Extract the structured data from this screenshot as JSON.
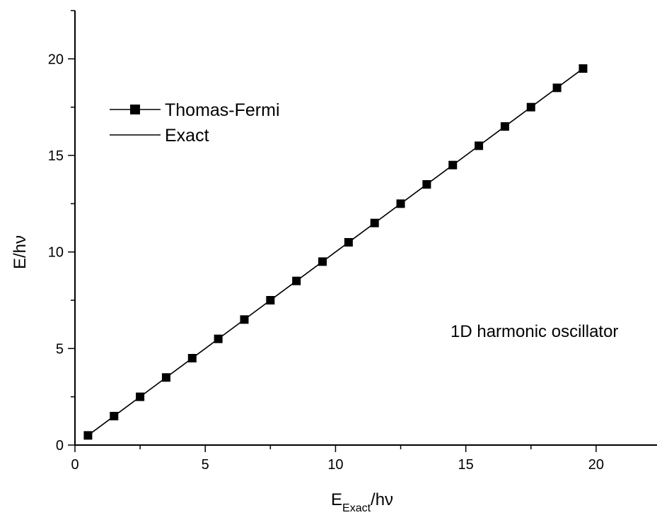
{
  "chart_data": {
    "type": "line",
    "xlabel_main": "E",
    "xlabel_sub": "Exact",
    "xlabel_tail": "/hν",
    "ylabel": "E/hν",
    "xlim": [
      0,
      22.5
    ],
    "ylim": [
      0,
      22.5
    ],
    "x_ticks": [
      0,
      5,
      10,
      15,
      20
    ],
    "y_ticks": [
      0,
      5,
      10,
      15,
      20
    ],
    "grid": false,
    "legend_position": "upper-left",
    "annotation": "1D harmonic oscillator",
    "series": [
      {
        "name": "Thomas-Fermi",
        "style": "line-with-square-markers",
        "color": "#000000",
        "x": [
          0.5,
          1.5,
          2.5,
          3.5,
          4.5,
          5.5,
          6.5,
          7.5,
          8.5,
          9.5,
          10.5,
          11.5,
          12.5,
          13.5,
          14.5,
          15.5,
          16.5,
          17.5,
          18.5,
          19.5
        ],
        "y": [
          0.5,
          1.5,
          2.5,
          3.5,
          4.5,
          5.5,
          6.5,
          7.5,
          8.5,
          9.5,
          10.5,
          11.5,
          12.5,
          13.5,
          14.5,
          15.5,
          16.5,
          17.5,
          18.5,
          19.5
        ]
      },
      {
        "name": "Exact",
        "style": "line",
        "color": "#000000",
        "x": [
          0.5,
          19.5
        ],
        "y": [
          0.5,
          19.5
        ]
      }
    ]
  }
}
